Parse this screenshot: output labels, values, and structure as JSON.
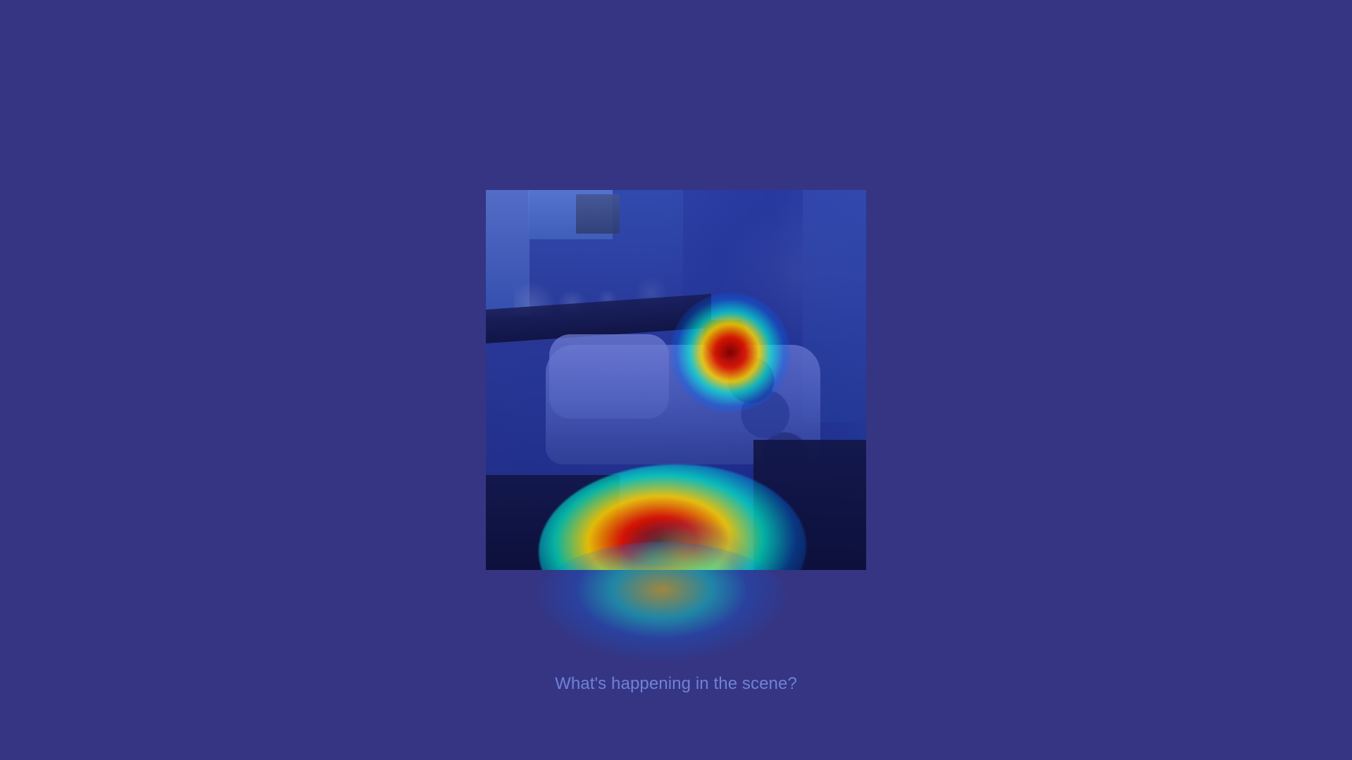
{
  "screen": {
    "background_color": "#353583"
  },
  "visualization": {
    "image_name": "living-room-kitchen-photo",
    "overlay_name": "attention-heatmap",
    "heat_colors": [
      "#0000b4",
      "#006eff",
      "#00ffdc",
      "#ffd700",
      "#dc1400",
      "#840000"
    ]
  },
  "prompt": {
    "text": "What's happening in the scene?"
  }
}
